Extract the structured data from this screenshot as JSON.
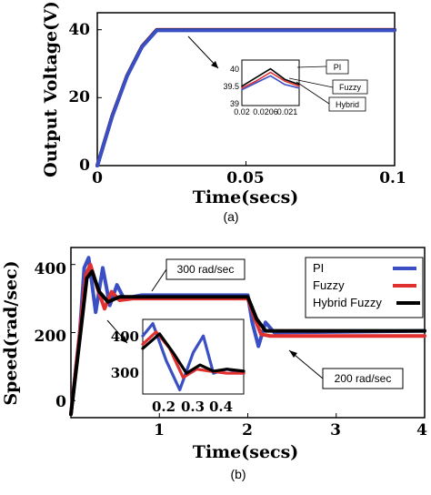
{
  "chart_data": [
    {
      "id": "a",
      "type": "line",
      "caption": "(a)",
      "xlabel": "Time(secs)",
      "ylabel": "Output Voltage(V)",
      "xlim": [
        0,
        0.1
      ],
      "ylim": [
        0,
        45
      ],
      "xticks": [
        "0",
        "0.05",
        "0.1"
      ],
      "xtick_values": [
        0,
        0.05,
        0.1
      ],
      "yticks": [
        "0",
        "20",
        "40"
      ],
      "ytick_values": [
        0,
        20,
        40
      ],
      "series": [
        {
          "name": "PI",
          "color": "#e03030",
          "x": [
            0,
            0.005,
            0.01,
            0.015,
            0.02,
            0.1
          ],
          "y": [
            0,
            14.6,
            26.5,
            35.1,
            40,
            40
          ]
        },
        {
          "name": "Fuzzy",
          "color": "#3a4fc4",
          "x": [
            0,
            0.005,
            0.01,
            0.015,
            0.02,
            0.1
          ],
          "y": [
            0,
            14.4,
            26.3,
            34.9,
            39.8,
            39.8
          ]
        },
        {
          "name": "Hybrid",
          "color": "#000000",
          "x": [
            0,
            0.005,
            0.01,
            0.015,
            0.02,
            0.1
          ],
          "y": [
            0,
            14.5,
            26.4,
            35.0,
            39.9,
            39.9
          ]
        }
      ],
      "inset": {
        "yticks": [
          "40",
          "39.5",
          "39"
        ],
        "ytick_values": [
          40,
          39.5,
          39
        ],
        "xticks": [
          "0.02",
          "0.0206",
          "0.021"
        ],
        "xtick_values": [
          0.02,
          0.0206,
          0.021
        ],
        "xlim": [
          0.02,
          0.0212
        ],
        "ylim": [
          39,
          40.3
        ],
        "series": [
          {
            "name": "PI",
            "color": "#e03030",
            "x": [
              0.02,
              0.0203,
              0.0206,
              0.0209,
              0.0212
            ],
            "y": [
              39.5,
              39.7,
              39.95,
              39.7,
              39.55
            ]
          },
          {
            "name": "Fuzzy",
            "color": "#3a4fc4",
            "x": [
              0.02,
              0.0203,
              0.0206,
              0.0209,
              0.0212
            ],
            "y": [
              39.45,
              39.65,
              39.85,
              39.6,
              39.5
            ]
          },
          {
            "name": "Hybrid",
            "color": "#000000",
            "x": [
              0.02,
              0.0203,
              0.0206,
              0.0209,
              0.0212
            ],
            "y": [
              39.55,
              39.8,
              40.05,
              39.75,
              39.6
            ]
          }
        ],
        "labels": [
          "PI",
          "Fuzzy",
          "Hybrid"
        ]
      }
    },
    {
      "id": "b",
      "type": "line",
      "caption": "(b)",
      "xlabel": "Time(secs)",
      "ylabel": "Speed(rad/sec)",
      "xlim": [
        0,
        4
      ],
      "ylim": [
        -50,
        450
      ],
      "xticks": [
        "1",
        "2",
        "3",
        "4"
      ],
      "xtick_values": [
        1,
        2,
        3,
        4
      ],
      "yticks": [
        "0",
        "200",
        "400"
      ],
      "ytick_values": [
        0,
        200,
        400
      ],
      "legend": {
        "placement": "top-right",
        "entries": [
          "PI",
          "Fuzzy",
          "Hybrid Fuzzy"
        ]
      },
      "series": [
        {
          "name": "PI",
          "color": "#3a4fc4",
          "x": [
            0,
            0.1,
            0.15,
            0.2,
            0.28,
            0.36,
            0.44,
            0.52,
            0.6,
            0.8,
            2.0,
            2.05,
            2.12,
            2.2,
            2.3,
            4.0
          ],
          "y": [
            -40,
            200,
            390,
            420,
            260,
            390,
            280,
            340,
            300,
            310,
            310,
            230,
            160,
            230,
            200,
            205
          ]
        },
        {
          "name": "Fuzzy",
          "color": "#e03030",
          "x": [
            0,
            0.1,
            0.17,
            0.22,
            0.3,
            0.38,
            0.46,
            0.55,
            0.7,
            2.0,
            2.08,
            2.15,
            2.25,
            4.0
          ],
          "y": [
            -40,
            200,
            370,
            400,
            330,
            270,
            320,
            295,
            300,
            300,
            240,
            195,
            190,
            190
          ]
        },
        {
          "name": "Hybrid Fuzzy",
          "color": "#000000",
          "x": [
            0,
            0.1,
            0.18,
            0.24,
            0.32,
            0.42,
            0.55,
            0.7,
            2.0,
            2.1,
            2.2,
            4.0
          ],
          "y": [
            -40,
            180,
            360,
            380,
            320,
            290,
            305,
            305,
            305,
            240,
            205,
            205
          ]
        }
      ],
      "annotations": [
        "300 rad/sec",
        "200 rad/sec"
      ],
      "inset": {
        "yticks": [
          "400",
          "300"
        ],
        "ytick_values": [
          400,
          300
        ],
        "xticks": [
          "0.2",
          "0.3",
          "0.4"
        ],
        "xtick_values": [
          0.2,
          0.3,
          0.4
        ],
        "xlim": [
          0.15,
          0.45
        ],
        "ylim": [
          250,
          430
        ],
        "series": [
          {
            "name": "PI",
            "color": "#3a4fc4",
            "x": [
              0.15,
              0.18,
              0.22,
              0.26,
              0.3,
              0.33,
              0.36,
              0.4,
              0.45
            ],
            "y": [
              390,
              420,
              330,
              260,
              350,
              390,
              300,
              310,
              300
            ]
          },
          {
            "name": "Fuzzy",
            "color": "#e03030",
            "x": [
              0.15,
              0.19,
              0.23,
              0.27,
              0.31,
              0.35,
              0.4,
              0.45
            ],
            "y": [
              370,
              400,
              360,
              290,
              310,
              305,
              300,
              300
            ]
          },
          {
            "name": "Hybrid Fuzzy",
            "color": "#000000",
            "x": [
              0.15,
              0.2,
              0.24,
              0.28,
              0.32,
              0.36,
              0.4,
              0.45
            ],
            "y": [
              360,
              395,
              350,
              300,
              320,
              305,
              310,
              305
            ]
          }
        ]
      }
    }
  ]
}
